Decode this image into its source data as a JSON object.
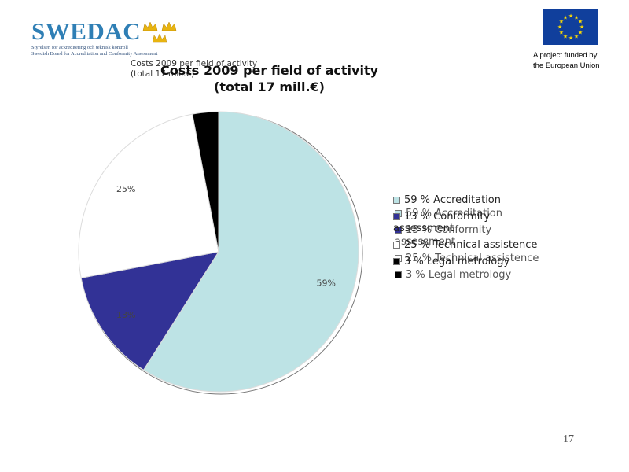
{
  "header": {
    "logo_text": "SWEDAC",
    "tagline_1": "Styrelsen för ackreditering och teknisk kontroll",
    "tagline_2": "Swedish Board for Accreditation and Conformity Assessment",
    "eu_caption_1": "A project funded by",
    "eu_caption_2": "the European Union"
  },
  "ghost_title": {
    "line1": "Costs 2009 per field of activity",
    "line2": "(total 17 mill.€)"
  },
  "chart_data": {
    "type": "pie",
    "title": "Costs 2009 per field of activity",
    "subtitle": "(total 17 mill.€)",
    "categories": [
      "Accreditation",
      "Conformity assessment",
      "Technical assistence",
      "Legal metrology"
    ],
    "values": [
      59,
      13,
      25,
      3
    ],
    "slice_labels": [
      "59%",
      "13%",
      "25%",
      ""
    ],
    "colors": [
      "#bde3e5",
      "#323296",
      "#ffffff",
      "#000000"
    ],
    "legend_entries": [
      "59 % Accreditation",
      "13 % Conformity assessment",
      "25 % Technical assistence",
      "3 % Legal metrology"
    ],
    "legend_placement": "right",
    "ghost_legend_entries": [
      "59 % Accreditation",
      "13 % Conformity assessment",
      "25 % Technical assistence",
      "3 % Legal metrology"
    ]
  },
  "footer": {
    "page_number": "17"
  },
  "colors": {
    "brand_blue": "#2f7fb5",
    "eu_blue": "#103f9c",
    "eu_star": "#ffdd00"
  }
}
